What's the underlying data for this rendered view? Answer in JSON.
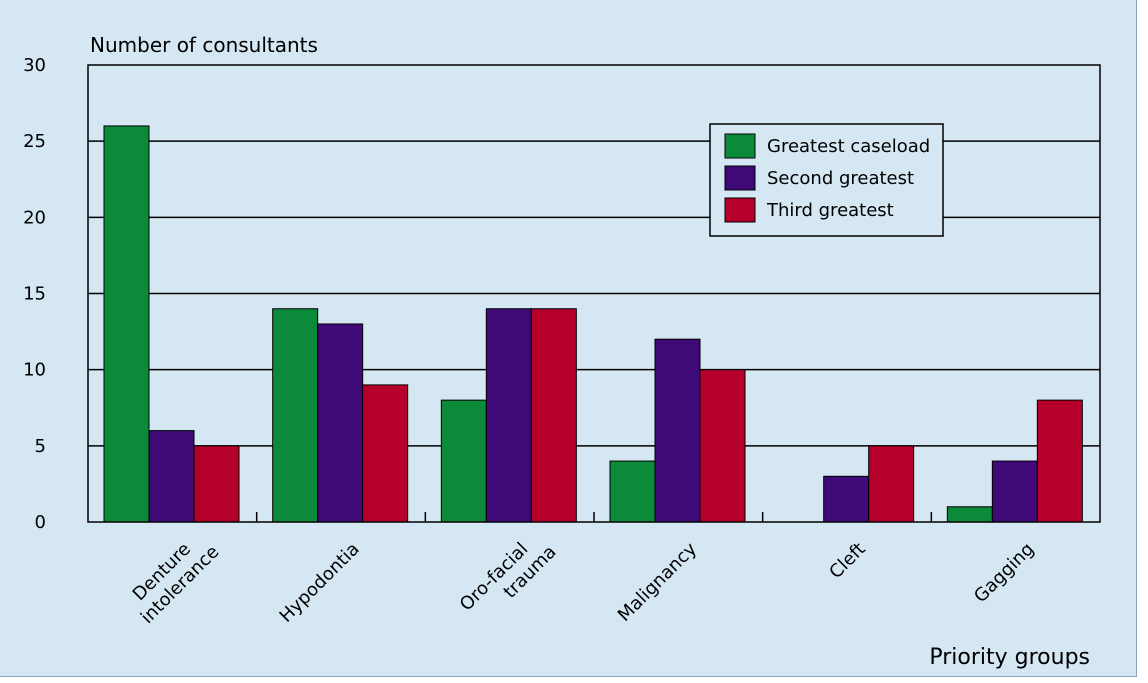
{
  "chart_data": {
    "type": "bar",
    "ylabel": "Number of consultants",
    "xlabel": "Priority groups",
    "ylim": [
      0,
      30
    ],
    "yticks": [
      0,
      5,
      10,
      15,
      20,
      25,
      30
    ],
    "grid": true,
    "legend_position": "top-right",
    "categories": [
      [
        "Denture",
        "intolerance"
      ],
      [
        "Hypodontia"
      ],
      [
        "Oro-facial",
        "trauma"
      ],
      [
        "Malignancy"
      ],
      [
        "Cleft"
      ],
      [
        "Gagging"
      ]
    ],
    "series": [
      {
        "name": "Greatest caseload",
        "color": "#0b8a3a",
        "values": [
          26,
          14,
          8,
          4,
          0,
          1
        ]
      },
      {
        "name": "Second greatest",
        "color": "#3f0a78",
        "values": [
          6,
          13,
          14,
          12,
          3,
          4
        ]
      },
      {
        "name": "Third greatest",
        "color": "#b5002b",
        "values": [
          5,
          9,
          14,
          10,
          5,
          8
        ]
      }
    ]
  }
}
